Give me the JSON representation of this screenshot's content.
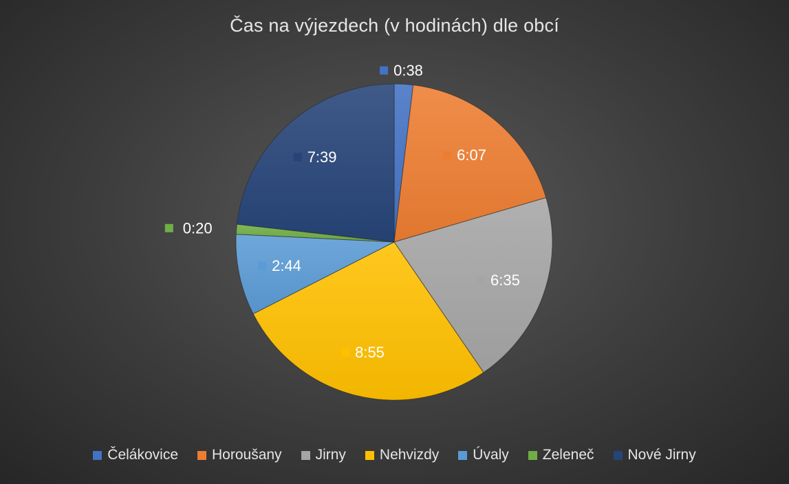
{
  "chart_data": {
    "type": "pie",
    "title": "Čas na výjezdech (v hodinách) dle obcí",
    "legend_position": "bottom",
    "unit": "h:mm",
    "slices": [
      {
        "name": "Čelákovice",
        "value": 0.6333,
        "label": "0:38",
        "color": "#4472c4"
      },
      {
        "name": "Horoušany",
        "value": 6.1167,
        "label": "6:07",
        "color": "#ed7d31"
      },
      {
        "name": "Jirny",
        "value": 6.5833,
        "label": "6:35",
        "color": "#a5a5a5"
      },
      {
        "name": "Nehvizdy",
        "value": 8.9167,
        "label": "8:55",
        "color": "#ffc000"
      },
      {
        "name": "Úvaly",
        "value": 2.7333,
        "label": "2:44",
        "color": "#5b9bd5"
      },
      {
        "name": "Zeleneč",
        "value": 0.3333,
        "label": "0:20",
        "color": "#70ad47"
      },
      {
        "name": "Nové Jirny",
        "value": 7.65,
        "label": "7:39",
        "color": "#264478"
      }
    ]
  }
}
